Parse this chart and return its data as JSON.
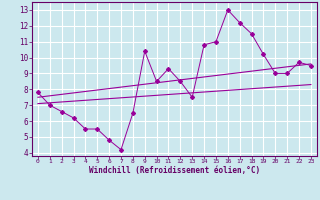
{
  "xlabel": "Windchill (Refroidissement éolien,°C)",
  "ylabel": "",
  "background_color": "#cce8ee",
  "grid_color": "#ffffff",
  "line_color": "#990099",
  "xlim": [
    -0.5,
    23.5
  ],
  "ylim": [
    3.8,
    13.5
  ],
  "yticks": [
    4,
    5,
    6,
    7,
    8,
    9,
    10,
    11,
    12,
    13
  ],
  "xticks": [
    0,
    1,
    2,
    3,
    4,
    5,
    6,
    7,
    8,
    9,
    10,
    11,
    12,
    13,
    14,
    15,
    16,
    17,
    18,
    19,
    20,
    21,
    22,
    23
  ],
  "data_x": [
    0,
    1,
    2,
    3,
    4,
    5,
    6,
    7,
    8,
    9,
    10,
    11,
    12,
    13,
    14,
    15,
    16,
    17,
    18,
    19,
    20,
    21,
    22,
    23
  ],
  "data_y": [
    7.8,
    7.0,
    6.6,
    6.2,
    5.5,
    5.5,
    4.8,
    4.2,
    6.5,
    10.4,
    8.5,
    9.3,
    8.5,
    7.5,
    10.8,
    11.0,
    13.0,
    12.2,
    11.5,
    10.2,
    9.0,
    9.0,
    9.7,
    9.5
  ],
  "trend1_x": [
    0,
    23
  ],
  "trend1_y": [
    7.5,
    9.6
  ],
  "trend2_x": [
    0,
    23
  ],
  "trend2_y": [
    7.1,
    8.3
  ],
  "xlabel_color": "#660066",
  "tick_color": "#660066",
  "spine_color": "#660066"
}
